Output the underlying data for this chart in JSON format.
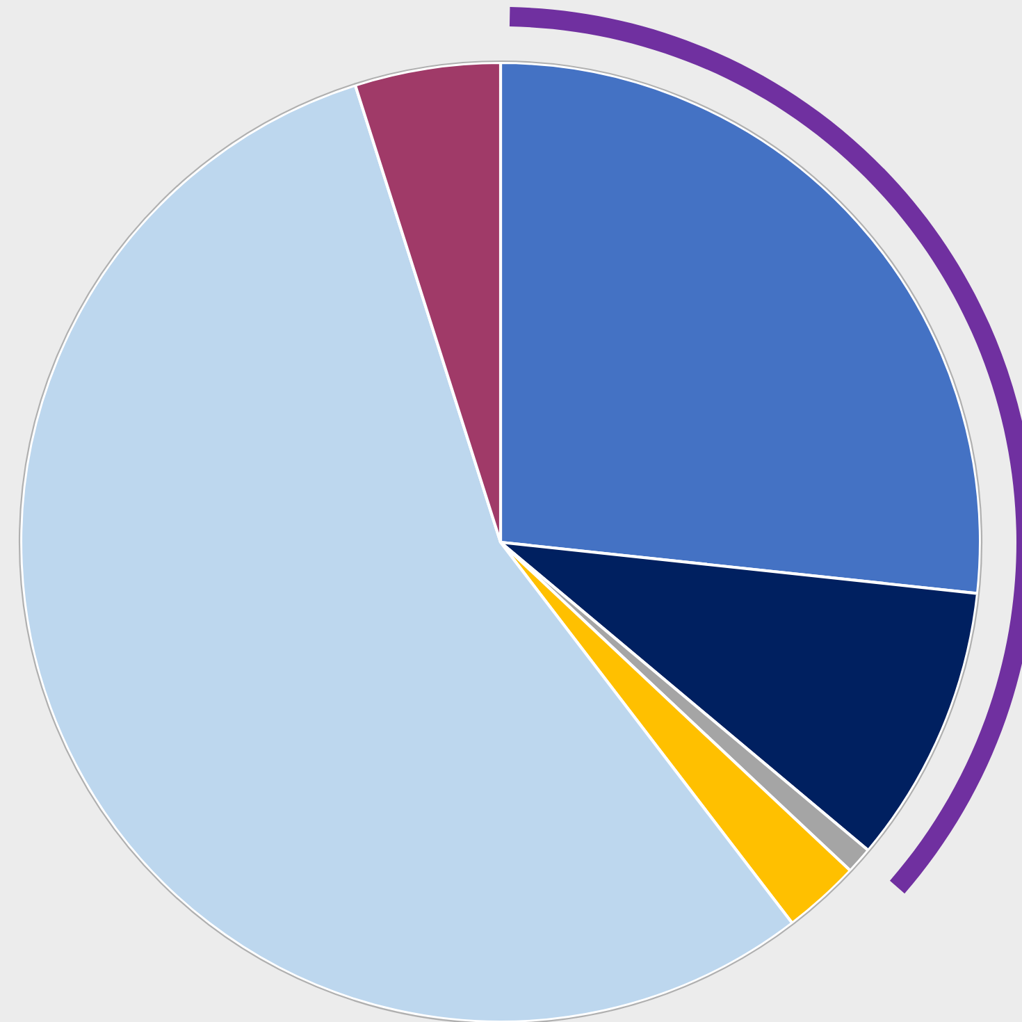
{
  "chart_data": {
    "type": "pie",
    "categories": [
      null,
      null,
      null,
      null,
      null,
      null
    ],
    "values": [
      26.7,
      9.4,
      0.9,
      2.6,
      55.5,
      4.9
    ],
    "colors": [
      "#4472c4",
      "#002060",
      "#a5a5a5",
      "#ffc000",
      "#bdd7ee",
      "#a03a68"
    ],
    "legend": false
  }
}
